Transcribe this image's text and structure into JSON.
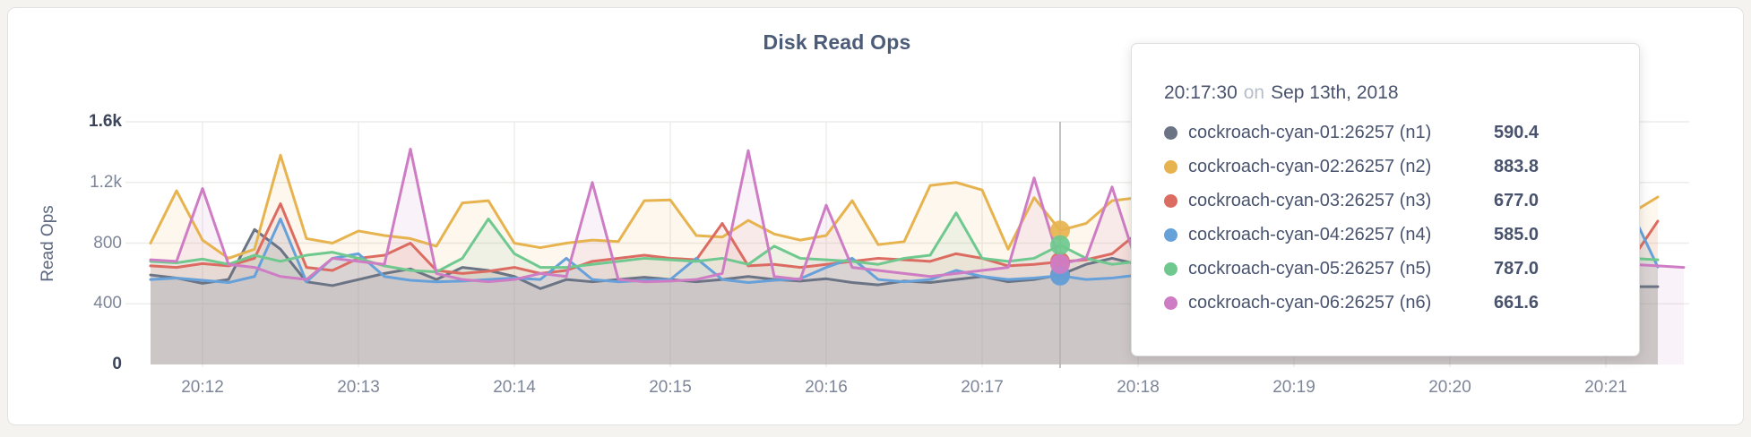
{
  "page": {
    "background": "#F4F3F0"
  },
  "card": {
    "background": "#FFFFFF",
    "border_color": "#E2E2E0"
  },
  "chart": {
    "title": "Disk Read Ops",
    "ylabel": "Read Ops"
  },
  "tooltip": {
    "time": "20:17:30",
    "preposition": "on",
    "date": "Sep 13th, 2018",
    "rows": [
      {
        "name": "cockroach-cyan-01:26257 (n1)",
        "value": "590.4",
        "color": "#6B7485"
      },
      {
        "name": "cockroach-cyan-02:26257 (n2)",
        "value": "883.8",
        "color": "#E7B34F"
      },
      {
        "name": "cockroach-cyan-03:26257 (n3)",
        "value": "677.0",
        "color": "#DC6B62"
      },
      {
        "name": "cockroach-cyan-04:26257 (n4)",
        "value": "585.0",
        "color": "#66A1DA"
      },
      {
        "name": "cockroach-cyan-05:26257 (n5)",
        "value": "787.0",
        "color": "#6FC98F"
      },
      {
        "name": "cockroach-cyan-06:26257 (n6)",
        "value": "661.6",
        "color": "#CE7DC5"
      }
    ]
  },
  "chart_data": {
    "type": "area",
    "title": "Disk Read Ops",
    "xlabel": "time",
    "ylabel": "Read Ops",
    "ylim": [
      0,
      1600
    ],
    "grid": true,
    "legend_position": "tooltip",
    "x_start_time": "20:11:40",
    "x_interval_seconds": 10,
    "hover_index": 35,
    "hover_time": "20:17:30",
    "colors": {
      "gridline": "#ECECEA",
      "hover_line": "#B3B3B3",
      "axis_text": "#7D8598",
      "axis_text_strong": "#3C445C"
    },
    "yticks": [
      {
        "label": "1.6k",
        "value": 1600,
        "strong": true
      },
      {
        "label": "1.2k",
        "value": 1200,
        "strong": false
      },
      {
        "label": "800",
        "value": 800,
        "strong": false
      },
      {
        "label": "400",
        "value": 400,
        "strong": false
      },
      {
        "label": "0",
        "value": 0,
        "strong": true
      }
    ],
    "xticks": [
      {
        "label": "20:12",
        "i": 2
      },
      {
        "label": "20:13",
        "i": 8
      },
      {
        "label": "20:14",
        "i": 14
      },
      {
        "label": "20:15",
        "i": 20
      },
      {
        "label": "20:16",
        "i": 26
      },
      {
        "label": "20:17",
        "i": 32
      },
      {
        "label": "20:18",
        "i": 38
      },
      {
        "label": "20:19",
        "i": 44
      },
      {
        "label": "20:20",
        "i": 50
      },
      {
        "label": "20:21",
        "i": 56
      }
    ],
    "series": [
      {
        "id": "n1",
        "name": "cockroach-cyan-01:26257 (n1)",
        "color": "#6B7485",
        "fill_opacity": 0.16,
        "values": [
          590,
          570,
          535,
          560,
          890,
          760,
          545,
          520,
          560,
          600,
          630,
          560,
          640,
          620,
          580,
          500,
          560,
          545,
          560,
          575,
          560,
          545,
          560,
          580,
          560,
          550,
          565,
          540,
          525,
          550,
          540,
          560,
          580,
          545,
          560,
          590.4,
          660,
          700,
          660,
          600,
          560,
          545,
          560,
          580,
          560,
          550,
          560,
          580,
          560,
          550,
          560,
          580,
          600,
          570,
          550,
          530,
          515,
          513,
          513
        ]
      },
      {
        "id": "n2",
        "name": "cockroach-cyan-02:26257 (n2)",
        "color": "#E7B34F",
        "fill_opacity": 0.1,
        "values": [
          800,
          1145,
          820,
          700,
          760,
          1380,
          830,
          800,
          880,
          850,
          830,
          780,
          1065,
          1080,
          800,
          770,
          800,
          820,
          810,
          1080,
          1085,
          850,
          840,
          950,
          860,
          820,
          850,
          1080,
          790,
          810,
          1180,
          1200,
          1150,
          760,
          1100,
          883.8,
          930,
          1080,
          1100,
          900,
          850,
          950,
          870,
          820,
          860,
          900,
          850,
          820,
          860,
          900,
          870,
          840,
          870,
          900,
          1050,
          950,
          900,
          1000,
          1104
        ]
      },
      {
        "id": "n3",
        "name": "cockroach-cyan-03:26257 (n3)",
        "color": "#DC6B62",
        "fill_opacity": 0.1,
        "values": [
          650,
          640,
          665,
          650,
          700,
          1060,
          640,
          620,
          700,
          720,
          800,
          620,
          600,
          615,
          640,
          600,
          620,
          680,
          700,
          720,
          700,
          690,
          930,
          650,
          660,
          640,
          660,
          680,
          700,
          690,
          680,
          730,
          700,
          650,
          660,
          677,
          690,
          730,
          870,
          700,
          680,
          660,
          700,
          720,
          680,
          660,
          700,
          680,
          660,
          700,
          720,
          700,
          680,
          700,
          720,
          750,
          700,
          691,
          945
        ]
      },
      {
        "id": "n4",
        "name": "cockroach-cyan-04:26257 (n4)",
        "color": "#66A1DA",
        "fill_opacity": 0.1,
        "values": [
          560,
          570,
          555,
          540,
          580,
          960,
          545,
          700,
          730,
          580,
          555,
          545,
          550,
          560,
          570,
          560,
          700,
          560,
          545,
          555,
          560,
          700,
          560,
          540,
          555,
          565,
          640,
          700,
          560,
          545,
          560,
          620,
          580,
          560,
          570,
          585,
          560,
          570,
          590,
          570,
          560,
          580,
          600,
          570,
          560,
          580,
          560,
          570,
          590,
          580,
          570,
          560,
          580,
          600,
          620,
          580,
          700,
          1004,
          643
        ]
      },
      {
        "id": "n5",
        "name": "cockroach-cyan-05:26257 (n5)",
        "color": "#6FC98F",
        "fill_opacity": 0.1,
        "values": [
          680,
          670,
          695,
          660,
          720,
          680,
          720,
          740,
          700,
          650,
          620,
          610,
          700,
          960,
          730,
          640,
          640,
          660,
          680,
          700,
          690,
          680,
          700,
          660,
          780,
          700,
          690,
          680,
          660,
          700,
          720,
          1000,
          700,
          680,
          700,
          787,
          700,
          660,
          680,
          700,
          720,
          700,
          680,
          1150,
          700,
          680,
          660,
          700,
          690,
          680,
          700,
          720,
          700,
          680,
          660,
          700,
          690,
          700,
          690
        ]
      },
      {
        "id": "n6",
        "name": "cockroach-cyan-06:26257 (n6)",
        "color": "#CE7DC5",
        "fill_opacity": 0.1,
        "values": [
          690,
          680,
          1160,
          660,
          640,
          580,
          560,
          700,
          680,
          660,
          1420,
          600,
          560,
          545,
          560,
          600,
          580,
          1200,
          560,
          545,
          550,
          560,
          600,
          1410,
          580,
          560,
          1050,
          640,
          620,
          600,
          580,
          600,
          620,
          640,
          1230,
          661.6,
          700,
          1170,
          640,
          700,
          650,
          620,
          600,
          640,
          660,
          620,
          600,
          640,
          620,
          600,
          640,
          660,
          620,
          640,
          660,
          620,
          600,
          660,
          650,
          640
        ]
      }
    ]
  }
}
